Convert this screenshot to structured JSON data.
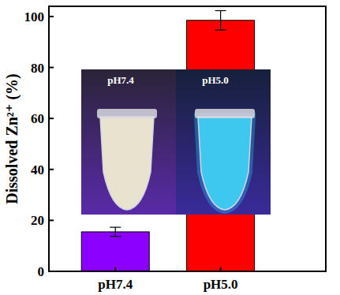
{
  "chart_data": {
    "type": "bar",
    "y_label": "Dissolved Zn²⁺ (%)",
    "categories": [
      "pH7.4",
      "pH5.0"
    ],
    "values": [
      15.5,
      98.5
    ],
    "errors": [
      1.8,
      3.8
    ],
    "colors": [
      "#8b00ff",
      "#ff0000"
    ],
    "ylim": [
      0,
      104
    ],
    "yticks": [
      0,
      20,
      40,
      60,
      80,
      100
    ],
    "annotations": [
      "pH7.4",
      "pH5.0"
    ],
    "grid": false
  }
}
